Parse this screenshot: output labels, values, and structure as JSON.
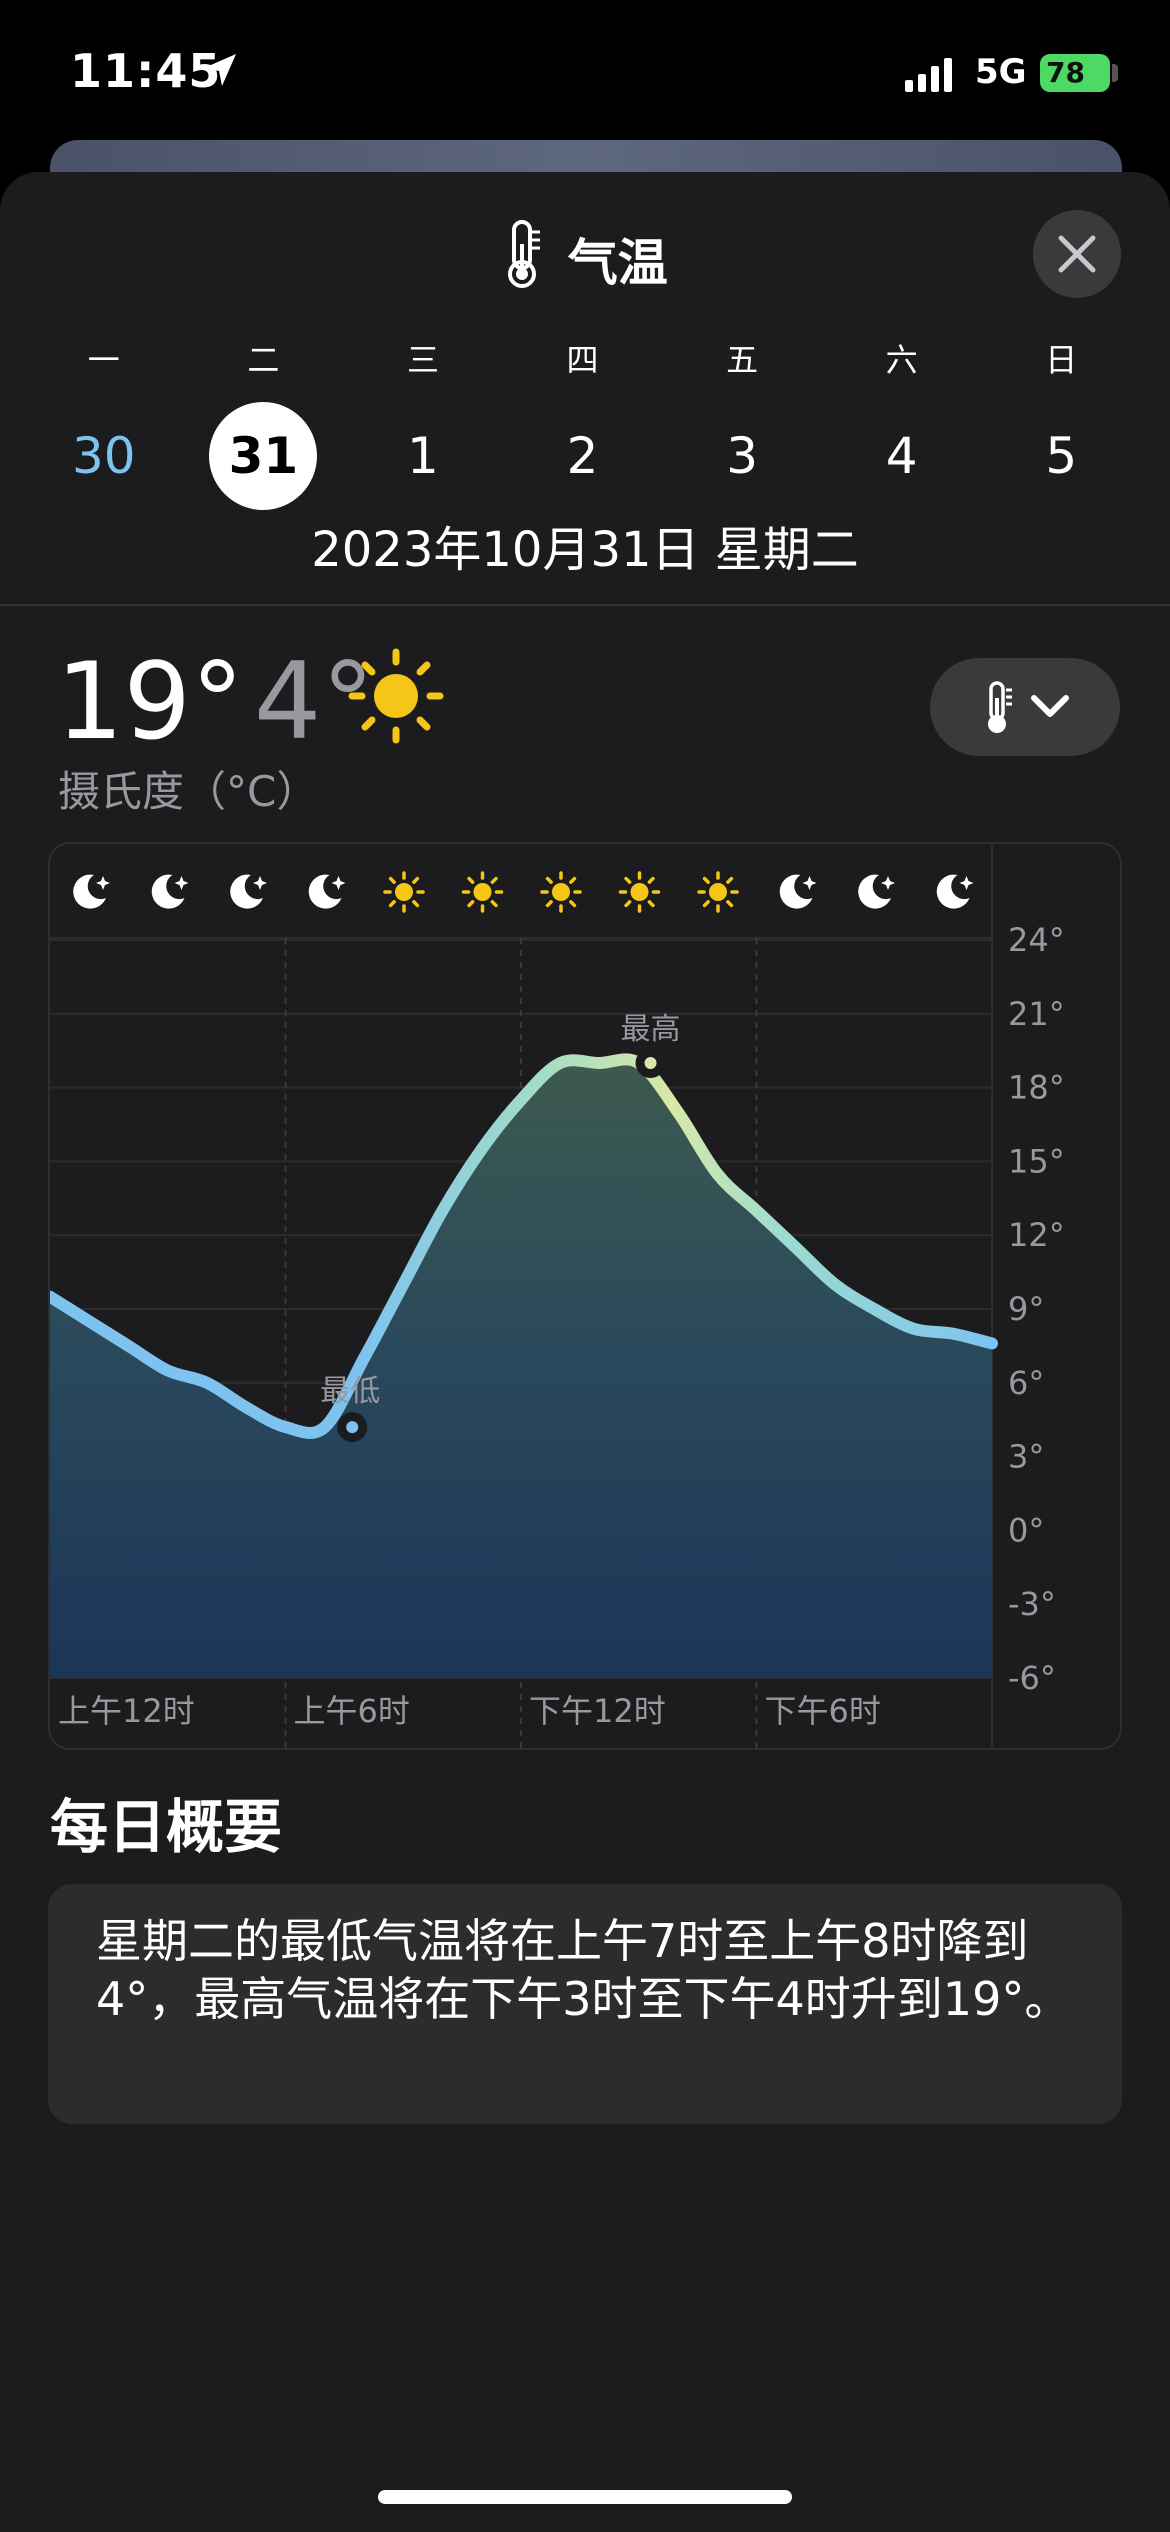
{
  "status": {
    "time": "11:45",
    "network": "5G",
    "battery": "78"
  },
  "header": {
    "title": "气温"
  },
  "week": {
    "weekdays": [
      "一",
      "二",
      "三",
      "四",
      "五",
      "六",
      "日"
    ],
    "dates": [
      "30",
      "31",
      "1",
      "2",
      "3",
      "4",
      "5"
    ],
    "selected_index": 1,
    "full_date": "2023年10月31日 星期二"
  },
  "current": {
    "high": "19°",
    "low": "4°",
    "unit": "摄氏度（°C）"
  },
  "chart_data": {
    "type": "area",
    "x_labels": [
      "上午12时",
      "上午6时",
      "下午12时",
      "下午6时"
    ],
    "x": [
      0,
      1,
      2,
      3,
      4,
      5,
      6,
      7,
      8,
      9,
      10,
      11,
      12,
      13,
      14,
      15,
      16,
      17,
      18,
      19,
      20,
      21,
      22,
      23,
      24
    ],
    "values": [
      9.5,
      8.5,
      7.5,
      6.5,
      6.0,
      5.0,
      4.2,
      4.2,
      7.0,
      10.0,
      13.0,
      15.5,
      17.5,
      19.0,
      19.0,
      19.0,
      17.0,
      14.5,
      13.0,
      11.5,
      10.0,
      9.0,
      8.2,
      8.0,
      7.6
    ],
    "ylim": [
      -6,
      24
    ],
    "y_ticks": [
      "24°",
      "21°",
      "18°",
      "15°",
      "12°",
      "9°",
      "6°",
      "3°",
      "0°",
      "-3°",
      "-6°"
    ],
    "y_tick_values": [
      24,
      21,
      18,
      15,
      12,
      9,
      6,
      3,
      0,
      -3,
      -6
    ],
    "min_label": "最低",
    "min_hour": 7.7,
    "min_value": 4.2,
    "max_label": "最高",
    "max_hour": 15.3,
    "max_value": 19.0,
    "condition_icons": [
      "moon",
      "moon",
      "moon",
      "moon",
      "sun",
      "sun",
      "sun",
      "sun",
      "sun",
      "moon",
      "moon",
      "moon"
    ],
    "grid": true
  },
  "summary": {
    "heading": "每日概要",
    "text": "星期二的最低气温将在上午7时至上午8时降到4°，最高气温将在下午3时至下午4时升到19°。"
  },
  "colors": {
    "accent_line_cold": "#7ec3f0",
    "accent_line_warm": "#d8e8a8",
    "sun": "#f5c518",
    "battery": "#4cd964"
  }
}
